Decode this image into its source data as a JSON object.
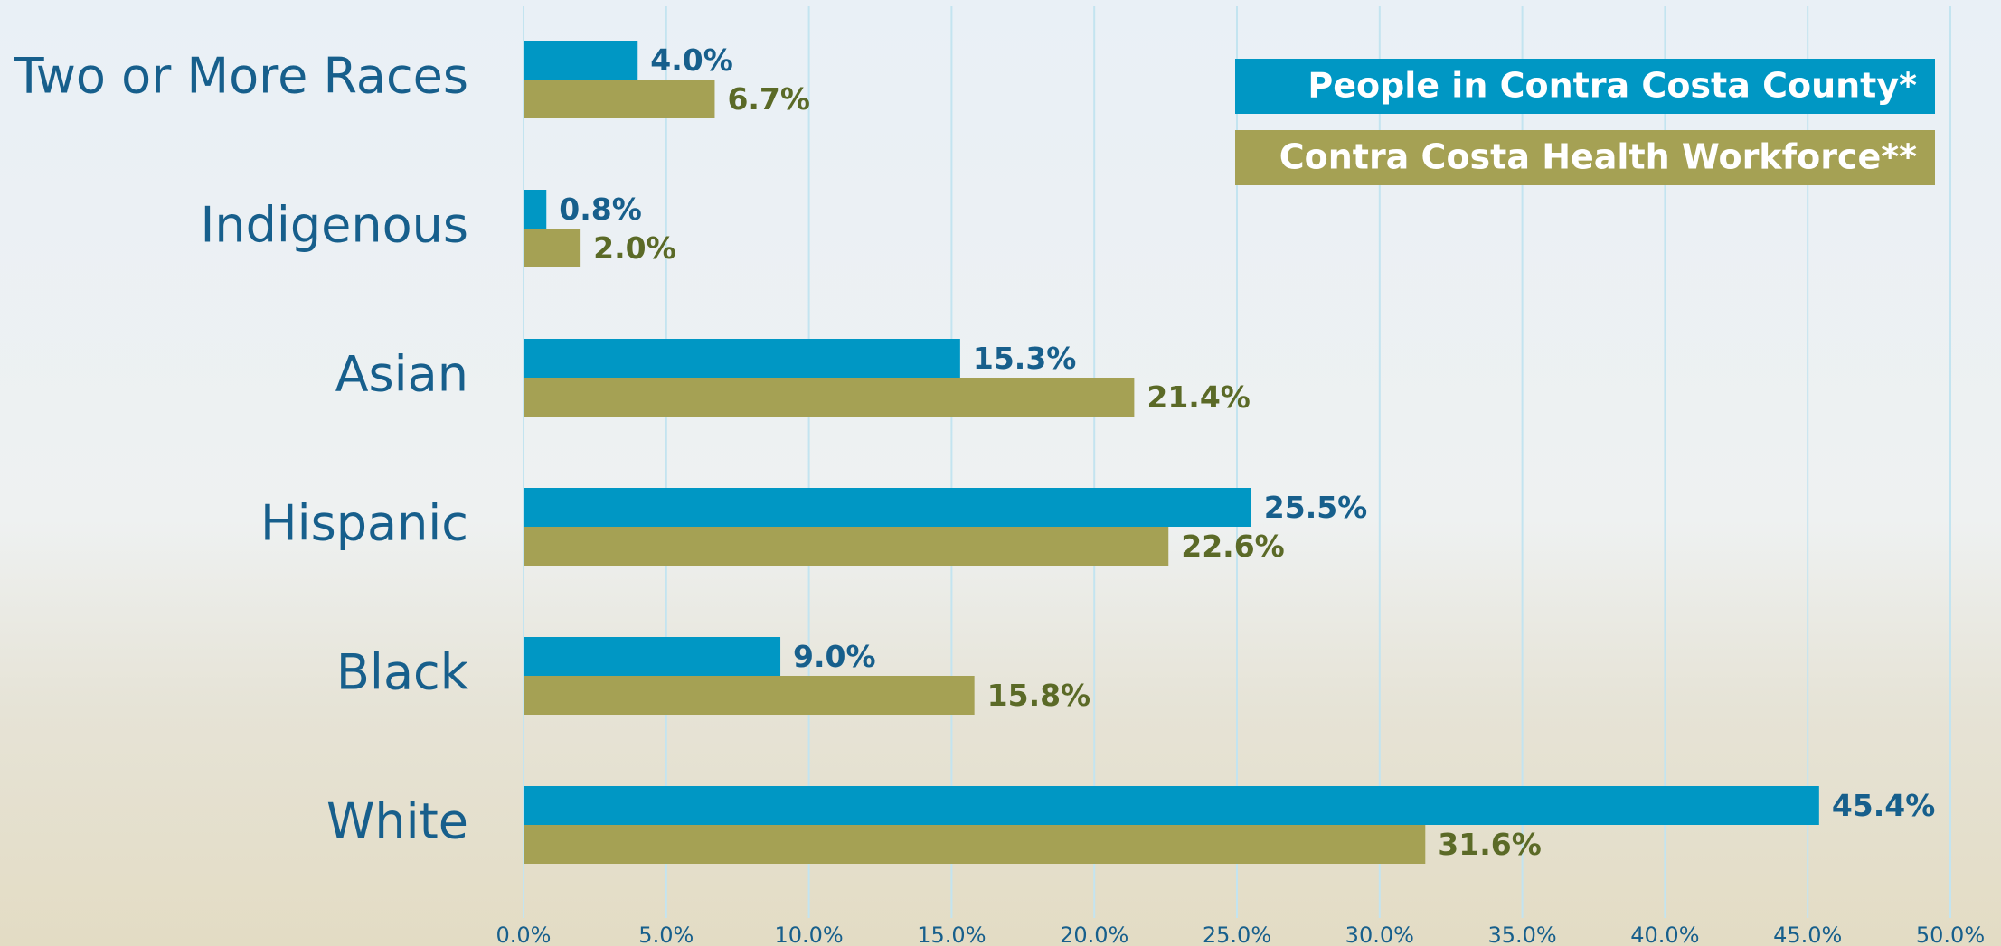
{
  "chart_data": {
    "type": "bar",
    "orientation": "horizontal",
    "categories": [
      "Two or More Races",
      "Indigenous",
      "Asian",
      "Hispanic",
      "Black",
      "White"
    ],
    "series": [
      {
        "name": "People in Contra Costa County*",
        "color": "#0097c4",
        "label_color": "#175f8c",
        "values": [
          4.0,
          0.8,
          15.3,
          25.5,
          9.0,
          45.4
        ],
        "value_labels": [
          "4.0%",
          "0.8%",
          "15.3%",
          "25.5%",
          "9.0%",
          "45.4%"
        ]
      },
      {
        "name": "Contra Costa Health Workforce**",
        "color": "#a5a154",
        "label_color": "#5b6a27",
        "values": [
          6.7,
          2.0,
          21.4,
          22.6,
          15.8,
          31.6
        ],
        "value_labels": [
          "6.7%",
          "2.0%",
          "21.4%",
          "22.6%",
          "15.8%",
          "31.6%"
        ]
      }
    ],
    "xlim": [
      0,
      50
    ],
    "xticks": [
      {
        "value": 0,
        "label": "0.0%"
      },
      {
        "value": 5,
        "label": "5.0%"
      },
      {
        "value": 10,
        "label": "10.0%"
      },
      {
        "value": 15,
        "label": "15.0%"
      },
      {
        "value": 20,
        "label": "20.0%"
      },
      {
        "value": 25,
        "label": "25.0%"
      },
      {
        "value": 30,
        "label": "30.0%"
      },
      {
        "value": 35,
        "label": "35.0%"
      },
      {
        "value": 40,
        "label": "40.0%"
      },
      {
        "value": 45,
        "label": "45.0%"
      },
      {
        "value": 50,
        "label": "50.0%"
      }
    ],
    "grid": true,
    "legend": "upper-right"
  }
}
